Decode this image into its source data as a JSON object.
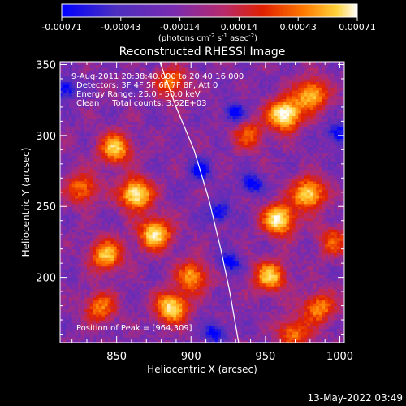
{
  "colors": {
    "background": "#000000",
    "text": "#ffffff",
    "limb": "#ffffff"
  },
  "chart_data": {
    "type": "heatmap",
    "title": "Reconstructed RHESSI Image",
    "xlabel": "Heliocentric X (arcsec)",
    "ylabel": "Heliocentric Y (arcsec)",
    "xlim": [
      812,
      1003
    ],
    "ylim": [
      154,
      352
    ],
    "x_ticks": [
      850,
      900,
      950,
      1000
    ],
    "y_ticks": [
      200,
      250,
      300,
      350
    ],
    "colorbar": {
      "ticks": [
        "-0.00071",
        "-0.00043",
        "-0.00014",
        "0.00014",
        "0.00043",
        "0.00071"
      ],
      "units_prefix": "(photons cm",
      "units_sup1": "-2",
      "units_mid1": " s",
      "units_sup2": "-1",
      "units_mid2": " asec",
      "units_sup3": "-2",
      "units_suffix": ")",
      "colors": [
        "#0000ff",
        "#4b2fbf",
        "#7a2bb0",
        "#b82a6a",
        "#e02000",
        "#ff7a00",
        "#ffd23a",
        "#ffffff"
      ]
    },
    "annotations": [
      "9-Aug-2011 20:38:40.000 to 20:40:16.000",
      "Detectors: 3F 4F 5F 6F 7F 8F, Att 0",
      "Energy Range: 25.0 - 50.0 keV",
      "Clean     Total counts: 3.52E+03"
    ],
    "peak_label": "Position of Peak = [964,309]",
    "peak": [
      964,
      309
    ],
    "limb_curve": [
      [
        879,
        352
      ],
      [
        890,
        320
      ],
      [
        902,
        290
      ],
      [
        912,
        255
      ],
      [
        920,
        220
      ],
      [
        926,
        190
      ],
      [
        932,
        154
      ]
    ],
    "hotspots": [
      {
        "x": 886,
        "y": 337,
        "v": 0.55
      },
      {
        "x": 848,
        "y": 290,
        "v": 0.75
      },
      {
        "x": 826,
        "y": 262,
        "v": 0.55
      },
      {
        "x": 862,
        "y": 258,
        "v": 0.95
      },
      {
        "x": 875,
        "y": 230,
        "v": 0.85
      },
      {
        "x": 842,
        "y": 215,
        "v": 0.75
      },
      {
        "x": 886,
        "y": 178,
        "v": 0.85
      },
      {
        "x": 900,
        "y": 200,
        "v": 0.65
      },
      {
        "x": 838,
        "y": 178,
        "v": 0.55
      },
      {
        "x": 962,
        "y": 314,
        "v": 1.0
      },
      {
        "x": 980,
        "y": 328,
        "v": 0.75
      },
      {
        "x": 938,
        "y": 300,
        "v": 0.45
      },
      {
        "x": 978,
        "y": 258,
        "v": 0.85
      },
      {
        "x": 958,
        "y": 240,
        "v": 0.9
      },
      {
        "x": 952,
        "y": 200,
        "v": 0.75
      },
      {
        "x": 985,
        "y": 178,
        "v": 0.6
      },
      {
        "x": 968,
        "y": 160,
        "v": 0.55
      },
      {
        "x": 995,
        "y": 225,
        "v": 0.45
      }
    ],
    "coldspots": [
      {
        "x": 905,
        "y": 275
      },
      {
        "x": 918,
        "y": 245
      },
      {
        "x": 928,
        "y": 315
      },
      {
        "x": 815,
        "y": 332
      },
      {
        "x": 915,
        "y": 160
      },
      {
        "x": 998,
        "y": 300
      },
      {
        "x": 925,
        "y": 210
      },
      {
        "x": 940,
        "y": 265
      }
    ]
  },
  "timestamp": "13-May-2022 03:49"
}
